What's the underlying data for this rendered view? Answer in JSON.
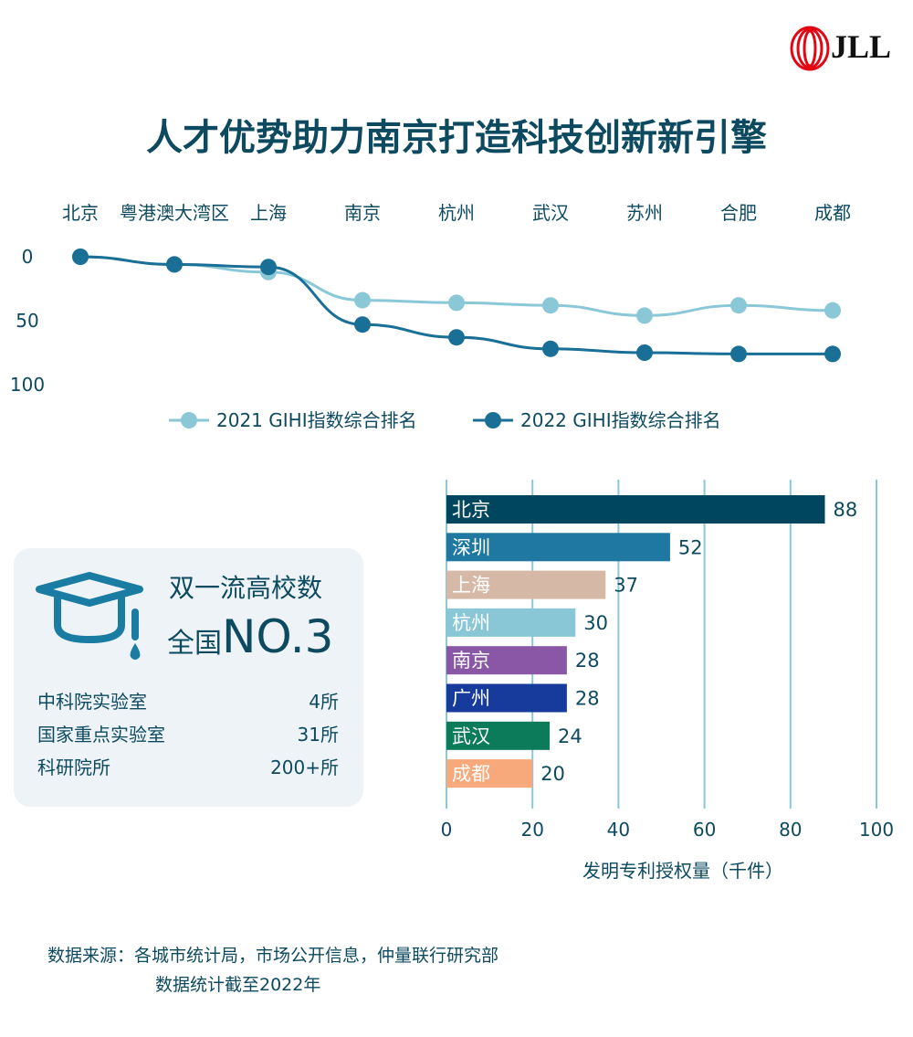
{
  "title": "人才优势助力南京打造科技创新新引擎",
  "logo": {
    "text": "JLL",
    "color": "#e30613"
  },
  "chart_data": [
    {
      "type": "line",
      "categories": [
        "北京",
        "粤港澳大湾区",
        "上海",
        "南京",
        "杭州",
        "武汉",
        "苏州",
        "合肥",
        "成都"
      ],
      "y_ticks": [
        "0",
        "50",
        "100"
      ],
      "ylim": [
        0,
        100
      ],
      "y_inverted": true,
      "legend_position": "bottom",
      "series": [
        {
          "name": "2021 GIHI指数综合排名",
          "color": "#8ac8d8",
          "values": [
            0,
            6,
            12,
            34,
            36,
            38,
            46,
            38,
            42
          ]
        },
        {
          "name": "2022 GIHI指数综合排名",
          "color": "#1a6f96",
          "values": [
            0,
            6,
            8,
            53,
            63,
            72,
            75,
            76,
            76
          ]
        }
      ]
    },
    {
      "type": "bar",
      "orientation": "horizontal",
      "categories": [
        "北京",
        "深圳",
        "上海",
        "杭州",
        "南京",
        "广州",
        "武汉",
        "成都"
      ],
      "values": [
        88,
        52,
        37,
        30,
        28,
        28,
        24,
        20
      ],
      "colors": [
        "#00465f",
        "#1e78a2",
        "#d5b9a6",
        "#89c7d6",
        "#8a57a7",
        "#173b9c",
        "#0b7b5a",
        "#f8a97b"
      ],
      "x_ticks": [
        "0",
        "20",
        "40",
        "60",
        "80",
        "100"
      ],
      "xlim": [
        0,
        100
      ],
      "xlabel": "发明专利授权量（千件）",
      "grid": true
    }
  ],
  "card": {
    "icon": "graduation-cap-icon",
    "title": "双一流高校数",
    "prefix": "全国",
    "rank": "NO.3",
    "stats": [
      {
        "label": "中科院实验室",
        "value": "4所"
      },
      {
        "label": "国家重点实验室",
        "value": "31所"
      },
      {
        "label": "科研院所",
        "value": "200+所"
      }
    ]
  },
  "source": {
    "line1": "数据来源：各城市统计局，市场公开信息，仲量联行研究部",
    "line2": "数据统计截至2022年"
  }
}
